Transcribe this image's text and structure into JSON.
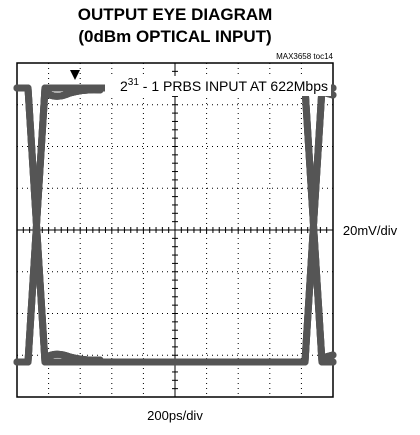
{
  "title_lines": [
    "OUTPUT EYE DIAGRAM",
    "(0dBm OPTICAL INPUT)"
  ],
  "figure_id": "MAX3658 toc14",
  "annotation": {
    "base": "2",
    "exponent": "31",
    "rest": " - 1 PRBS INPUT AT 622Mbps"
  },
  "vertical_scale": "20mV/div",
  "horizontal_scale": "200ps/div"
}
